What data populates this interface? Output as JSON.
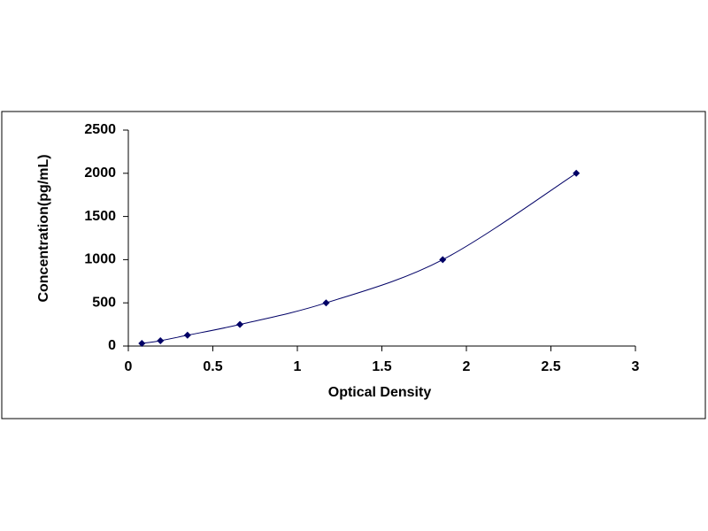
{
  "chart_data": {
    "type": "scatter",
    "x_label": "Optical Density",
    "y_label": "Concentration(pg/mL)",
    "x": [
      0.08,
      0.19,
      0.35,
      0.66,
      1.17,
      1.86,
      2.65
    ],
    "values": [
      31,
      62,
      125,
      250,
      500,
      1000,
      2000
    ],
    "color": "#000066",
    "xlim": [
      0,
      3
    ],
    "xticks": [
      0,
      0.5,
      1,
      1.5,
      2,
      2.5,
      3
    ],
    "ylim": [
      0,
      2500
    ],
    "yticks": [
      0,
      500,
      1000,
      1500,
      2000,
      2500
    ],
    "smooth_line": true
  }
}
